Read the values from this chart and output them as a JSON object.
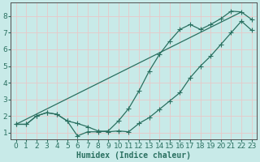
{
  "title": "",
  "xlabel": "Humidex (Indice chaleur)",
  "ylabel": "",
  "bg_color": "#c8eae8",
  "grid_color": "#e8c8c8",
  "line_color": "#2a7060",
  "xlim": [
    -0.5,
    23.5
  ],
  "ylim": [
    0.6,
    8.8
  ],
  "xticks": [
    0,
    1,
    2,
    3,
    4,
    5,
    6,
    7,
    8,
    9,
    10,
    11,
    12,
    13,
    14,
    15,
    16,
    17,
    18,
    19,
    20,
    21,
    22,
    23
  ],
  "yticks": [
    1,
    2,
    3,
    4,
    5,
    6,
    7,
    8
  ],
  "line1_x": [
    0,
    1,
    2,
    3,
    4,
    5,
    6,
    7,
    8,
    9,
    10,
    11,
    12,
    13,
    14,
    15,
    16,
    17,
    18,
    19,
    20,
    21,
    22,
    23
  ],
  "line1_y": [
    1.5,
    1.5,
    2.0,
    2.2,
    2.1,
    1.7,
    1.55,
    1.35,
    1.1,
    1.05,
    1.1,
    1.05,
    1.55,
    1.9,
    2.4,
    2.9,
    3.4,
    4.3,
    5.0,
    5.6,
    6.3,
    7.0,
    7.7,
    7.15
  ],
  "line2_x": [
    0,
    1,
    2,
    3,
    4,
    5,
    6,
    7,
    8,
    9,
    10,
    11,
    12,
    13,
    14,
    15,
    16,
    17,
    18,
    19,
    20,
    21,
    22,
    23
  ],
  "line2_y": [
    1.5,
    1.5,
    2.0,
    2.2,
    2.1,
    1.7,
    0.8,
    1.05,
    1.05,
    1.1,
    1.7,
    2.45,
    3.5,
    4.7,
    5.7,
    6.5,
    7.2,
    7.5,
    7.2,
    7.5,
    7.85,
    8.3,
    8.25,
    7.8
  ],
  "line3_x": [
    0,
    22
  ],
  "line3_y": [
    1.5,
    8.25
  ],
  "marker_size": 2.2,
  "linewidth": 0.9,
  "xlabel_fontsize": 7,
  "tick_fontsize": 6.5
}
